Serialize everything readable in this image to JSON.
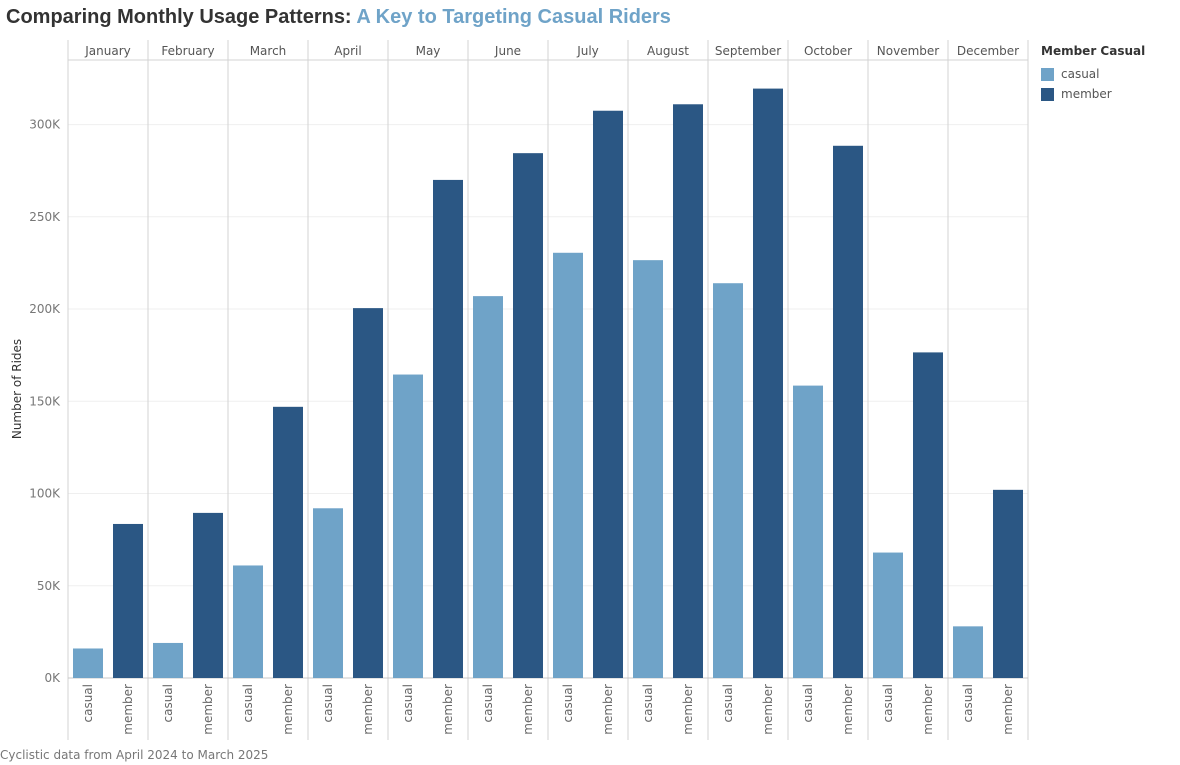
{
  "title": {
    "part1": "Comparing Monthly Usage Patterns: ",
    "part2": "A Key to Targeting Casual Riders"
  },
  "legend": {
    "title": "Member Casual",
    "items": [
      {
        "label": "casual",
        "color": "#6fa3c8"
      },
      {
        "label": "member",
        "color": "#2b5784"
      }
    ]
  },
  "caption": "Cyclistic data from April 2024 to March 2025",
  "colors": {
    "casual": "#6fa3c8",
    "member": "#2b5784"
  },
  "chart_data": {
    "type": "bar",
    "categories": [
      "January",
      "February",
      "March",
      "April",
      "May",
      "June",
      "July",
      "August",
      "September",
      "October",
      "November",
      "December"
    ],
    "subcategories": [
      "casual",
      "member"
    ],
    "series": [
      {
        "name": "casual",
        "values": [
          16000,
          19000,
          61000,
          92000,
          164500,
          207000,
          230500,
          226500,
          214000,
          158500,
          68000,
          28000
        ]
      },
      {
        "name": "member",
        "values": [
          83500,
          89500,
          147000,
          200500,
          270000,
          284500,
          307500,
          311000,
          319500,
          288500,
          176500,
          102000
        ]
      }
    ],
    "ylabel": "Number of Rides",
    "xlabel": "",
    "ylim": [
      0,
      335000
    ],
    "yticks": [
      0,
      50000,
      100000,
      150000,
      200000,
      250000,
      300000
    ],
    "ytick_labels": [
      "0K",
      "50K",
      "100K",
      "150K",
      "200K",
      "250K",
      "300K"
    ],
    "grid": true,
    "legend_position": "right"
  }
}
